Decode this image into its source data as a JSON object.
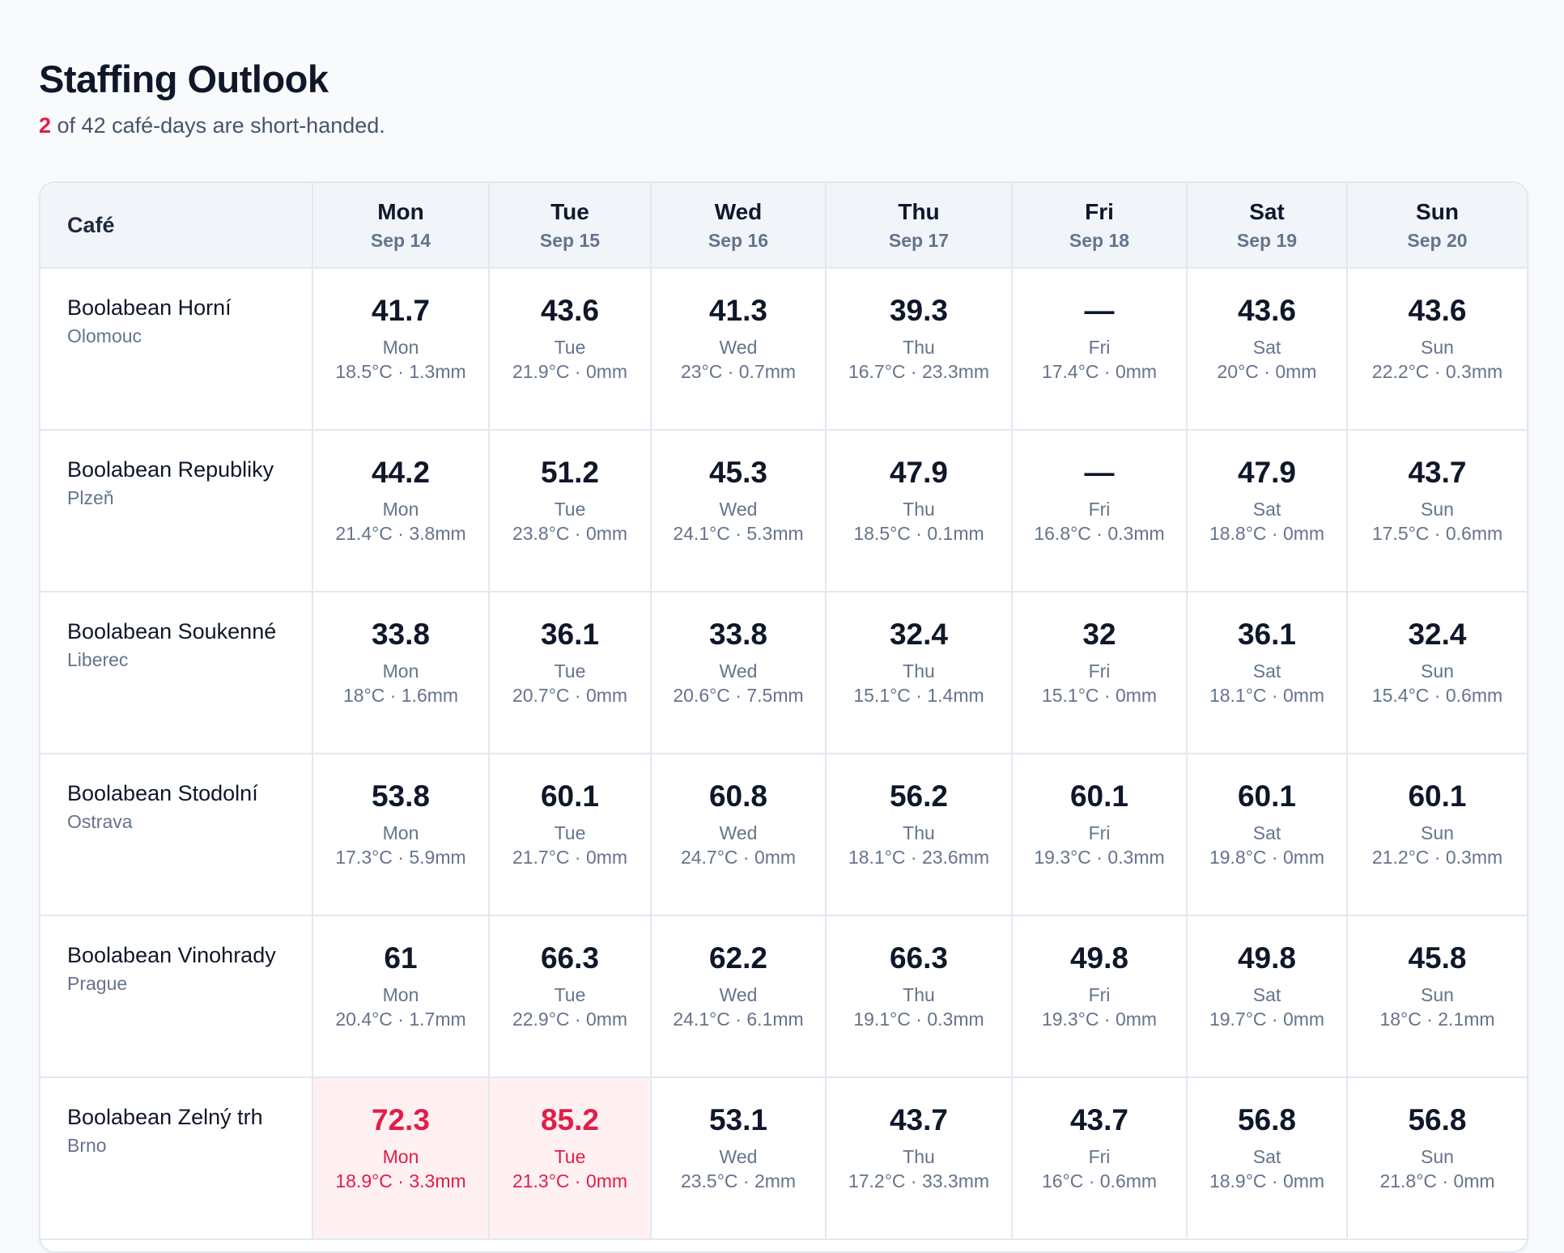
{
  "page": {
    "title": "Staffing Outlook",
    "summary_count": "2",
    "summary_text": " of 42 café-days are short-handed."
  },
  "colors": {
    "short_accent": "#e11d48",
    "short_bg": "#fff1f2"
  },
  "table": {
    "cafe_header": "Café",
    "days": [
      {
        "day": "Mon",
        "date": "Sep 14"
      },
      {
        "day": "Tue",
        "date": "Sep 15"
      },
      {
        "day": "Wed",
        "date": "Sep 16"
      },
      {
        "day": "Thu",
        "date": "Sep 17"
      },
      {
        "day": "Fri",
        "date": "Sep 18"
      },
      {
        "day": "Sat",
        "date": "Sep 19"
      },
      {
        "day": "Sun",
        "date": "Sep 20"
      }
    ],
    "rows": [
      {
        "name": "Boolabean Horní",
        "city": "Olomouc",
        "cells": [
          {
            "value": "41.7",
            "day": "Mon",
            "weather": "18.5°C · 1.3mm"
          },
          {
            "value": "43.6",
            "day": "Tue",
            "weather": "21.9°C · 0mm"
          },
          {
            "value": "41.3",
            "day": "Wed",
            "weather": "23°C · 0.7mm"
          },
          {
            "value": "39.3",
            "day": "Thu",
            "weather": "16.7°C · 23.3mm"
          },
          {
            "value": "—",
            "day": "Fri",
            "weather": "17.4°C · 0mm"
          },
          {
            "value": "43.6",
            "day": "Sat",
            "weather": "20°C · 0mm"
          },
          {
            "value": "43.6",
            "day": "Sun",
            "weather": "22.2°C · 0.3mm"
          }
        ]
      },
      {
        "name": "Boolabean Republiky",
        "city": "Plzeň",
        "cells": [
          {
            "value": "44.2",
            "day": "Mon",
            "weather": "21.4°C · 3.8mm"
          },
          {
            "value": "51.2",
            "day": "Tue",
            "weather": "23.8°C · 0mm"
          },
          {
            "value": "45.3",
            "day": "Wed",
            "weather": "24.1°C · 5.3mm"
          },
          {
            "value": "47.9",
            "day": "Thu",
            "weather": "18.5°C · 0.1mm"
          },
          {
            "value": "—",
            "day": "Fri",
            "weather": "16.8°C · 0.3mm"
          },
          {
            "value": "47.9",
            "day": "Sat",
            "weather": "18.8°C · 0mm"
          },
          {
            "value": "43.7",
            "day": "Sun",
            "weather": "17.5°C · 0.6mm"
          }
        ]
      },
      {
        "name": "Boolabean Soukenné",
        "city": "Liberec",
        "cells": [
          {
            "value": "33.8",
            "day": "Mon",
            "weather": "18°C · 1.6mm"
          },
          {
            "value": "36.1",
            "day": "Tue",
            "weather": "20.7°C · 0mm"
          },
          {
            "value": "33.8",
            "day": "Wed",
            "weather": "20.6°C · 7.5mm"
          },
          {
            "value": "32.4",
            "day": "Thu",
            "weather": "15.1°C · 1.4mm"
          },
          {
            "value": "32",
            "day": "Fri",
            "weather": "15.1°C · 0mm"
          },
          {
            "value": "36.1",
            "day": "Sat",
            "weather": "18.1°C · 0mm"
          },
          {
            "value": "32.4",
            "day": "Sun",
            "weather": "15.4°C · 0.6mm"
          }
        ]
      },
      {
        "name": "Boolabean Stodolní",
        "city": "Ostrava",
        "cells": [
          {
            "value": "53.8",
            "day": "Mon",
            "weather": "17.3°C · 5.9mm"
          },
          {
            "value": "60.1",
            "day": "Tue",
            "weather": "21.7°C · 0mm"
          },
          {
            "value": "60.8",
            "day": "Wed",
            "weather": "24.7°C · 0mm"
          },
          {
            "value": "56.2",
            "day": "Thu",
            "weather": "18.1°C · 23.6mm"
          },
          {
            "value": "60.1",
            "day": "Fri",
            "weather": "19.3°C · 0.3mm"
          },
          {
            "value": "60.1",
            "day": "Sat",
            "weather": "19.8°C · 0mm"
          },
          {
            "value": "60.1",
            "day": "Sun",
            "weather": "21.2°C · 0.3mm"
          }
        ]
      },
      {
        "name": "Boolabean Vinohrady",
        "city": "Prague",
        "cells": [
          {
            "value": "61",
            "day": "Mon",
            "weather": "20.4°C · 1.7mm"
          },
          {
            "value": "66.3",
            "day": "Tue",
            "weather": "22.9°C · 0mm"
          },
          {
            "value": "62.2",
            "day": "Wed",
            "weather": "24.1°C · 6.1mm"
          },
          {
            "value": "66.3",
            "day": "Thu",
            "weather": "19.1°C · 0.3mm"
          },
          {
            "value": "49.8",
            "day": "Fri",
            "weather": "19.3°C · 0mm"
          },
          {
            "value": "49.8",
            "day": "Sat",
            "weather": "19.7°C · 0mm"
          },
          {
            "value": "45.8",
            "day": "Sun",
            "weather": "18°C · 2.1mm"
          }
        ]
      },
      {
        "name": "Boolabean Zelný trh",
        "city": "Brno",
        "cells": [
          {
            "value": "72.3",
            "day": "Mon",
            "weather": "18.9°C · 3.3mm",
            "short": true
          },
          {
            "value": "85.2",
            "day": "Tue",
            "weather": "21.3°C · 0mm",
            "short": true
          },
          {
            "value": "53.1",
            "day": "Wed",
            "weather": "23.5°C · 2mm"
          },
          {
            "value": "43.7",
            "day": "Thu",
            "weather": "17.2°C · 33.3mm"
          },
          {
            "value": "43.7",
            "day": "Fri",
            "weather": "16°C · 0.6mm"
          },
          {
            "value": "56.8",
            "day": "Sat",
            "weather": "18.9°C · 0mm"
          },
          {
            "value": "56.8",
            "day": "Sun",
            "weather": "21.8°C · 0mm"
          }
        ]
      }
    ]
  }
}
